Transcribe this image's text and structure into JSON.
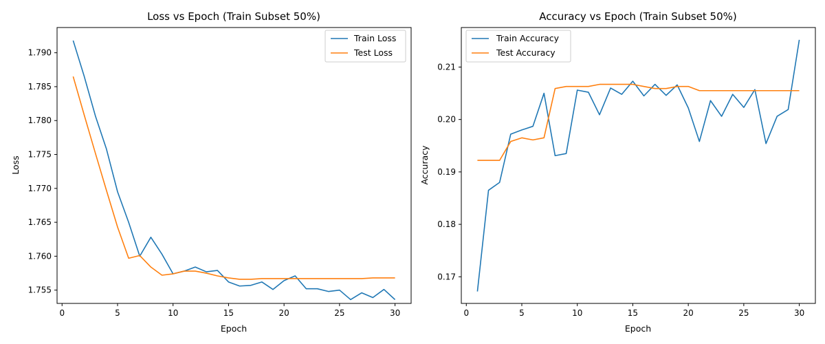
{
  "chart_data": [
    {
      "type": "line",
      "title": "Loss vs Epoch (Train Subset 50%)",
      "xlabel": "Epoch",
      "ylabel": "Loss",
      "xlim": [
        -0.45,
        31.45
      ],
      "ylim": [
        1.75304,
        1.79372
      ],
      "xticks": [
        0,
        5,
        10,
        15,
        20,
        25,
        30
      ],
      "xtick_labels": [
        "0",
        "5",
        "10",
        "15",
        "20",
        "25",
        "30"
      ],
      "yticks": [
        1.755,
        1.76,
        1.765,
        1.77,
        1.775,
        1.78,
        1.785,
        1.79
      ],
      "ytick_labels": [
        "1.755",
        "1.760",
        "1.765",
        "1.770",
        "1.775",
        "1.780",
        "1.785",
        "1.790"
      ],
      "grid": false,
      "legend_position": "top-right",
      "x": [
        1,
        2,
        3,
        4,
        5,
        6,
        7,
        8,
        9,
        10,
        11,
        12,
        13,
        14,
        15,
        16,
        17,
        18,
        19,
        20,
        21,
        22,
        23,
        24,
        25,
        26,
        27,
        28,
        29,
        30
      ],
      "series": [
        {
          "name": "Train Loss",
          "color": "#1f77b4",
          "values": [
            1.7918,
            1.7865,
            1.7807,
            1.7758,
            1.7695,
            1.765,
            1.76,
            1.7628,
            1.7603,
            1.7574,
            1.7578,
            1.7584,
            1.7577,
            1.7579,
            1.7562,
            1.7556,
            1.7557,
            1.7562,
            1.7551,
            1.7564,
            1.7571,
            1.7552,
            1.7552,
            1.7548,
            1.755,
            1.7536,
            1.7546,
            1.7539,
            1.7551,
            1.7536
          ]
        },
        {
          "name": "Test Loss",
          "color": "#ff7f0e",
          "values": [
            1.7865,
            1.7808,
            1.7752,
            1.7697,
            1.7643,
            1.7597,
            1.7601,
            1.7584,
            1.7572,
            1.7574,
            1.7578,
            1.7578,
            1.7575,
            1.7571,
            1.7568,
            1.7566,
            1.7566,
            1.7567,
            1.7567,
            1.7567,
            1.7567,
            1.7567,
            1.7567,
            1.7567,
            1.7567,
            1.7567,
            1.7567,
            1.7568,
            1.7568,
            1.7568
          ]
        }
      ]
    },
    {
      "type": "line",
      "title": "Accuracy vs Epoch (Train Subset 50%)",
      "xlabel": "Epoch",
      "ylabel": "Accuracy",
      "xlim": [
        -0.45,
        31.45
      ],
      "ylim": [
        0.16492,
        0.21754
      ],
      "xticks": [
        0,
        5,
        10,
        15,
        20,
        25,
        30
      ],
      "xtick_labels": [
        "0",
        "5",
        "10",
        "15",
        "20",
        "25",
        "30"
      ],
      "yticks": [
        0.17,
        0.18,
        0.19,
        0.2,
        0.21
      ],
      "ytick_labels": [
        "0.17",
        "0.18",
        "0.19",
        "0.20",
        "0.21"
      ],
      "grid": false,
      "legend_position": "top-left",
      "x": [
        1,
        2,
        3,
        4,
        5,
        6,
        7,
        8,
        9,
        10,
        11,
        12,
        13,
        14,
        15,
        16,
        17,
        18,
        19,
        20,
        21,
        22,
        23,
        24,
        25,
        26,
        27,
        28,
        29,
        30
      ],
      "series": [
        {
          "name": "Train Accuracy",
          "color": "#1f77b4",
          "values": [
            0.1672,
            0.1865,
            0.188,
            0.1972,
            0.198,
            0.1987,
            0.205,
            0.1931,
            0.1935,
            0.2056,
            0.2052,
            0.2009,
            0.206,
            0.2048,
            0.2073,
            0.2045,
            0.2067,
            0.2046,
            0.2066,
            0.2022,
            0.1958,
            0.2036,
            0.2006,
            0.2048,
            0.2023,
            0.2057,
            0.1954,
            0.2006,
            0.2019,
            0.2152
          ]
        },
        {
          "name": "Test Accuracy",
          "color": "#ff7f0e",
          "values": [
            0.1922,
            0.1922,
            0.1922,
            0.1958,
            0.1965,
            0.1961,
            0.1965,
            0.2059,
            0.2063,
            0.2063,
            0.2063,
            0.2067,
            0.2067,
            0.2067,
            0.2067,
            0.2063,
            0.2059,
            0.2059,
            0.2063,
            0.2063,
            0.2055,
            0.2055,
            0.2055,
            0.2055,
            0.2055,
            0.2055,
            0.2055,
            0.2055,
            0.2055,
            0.2055
          ]
        }
      ]
    }
  ]
}
